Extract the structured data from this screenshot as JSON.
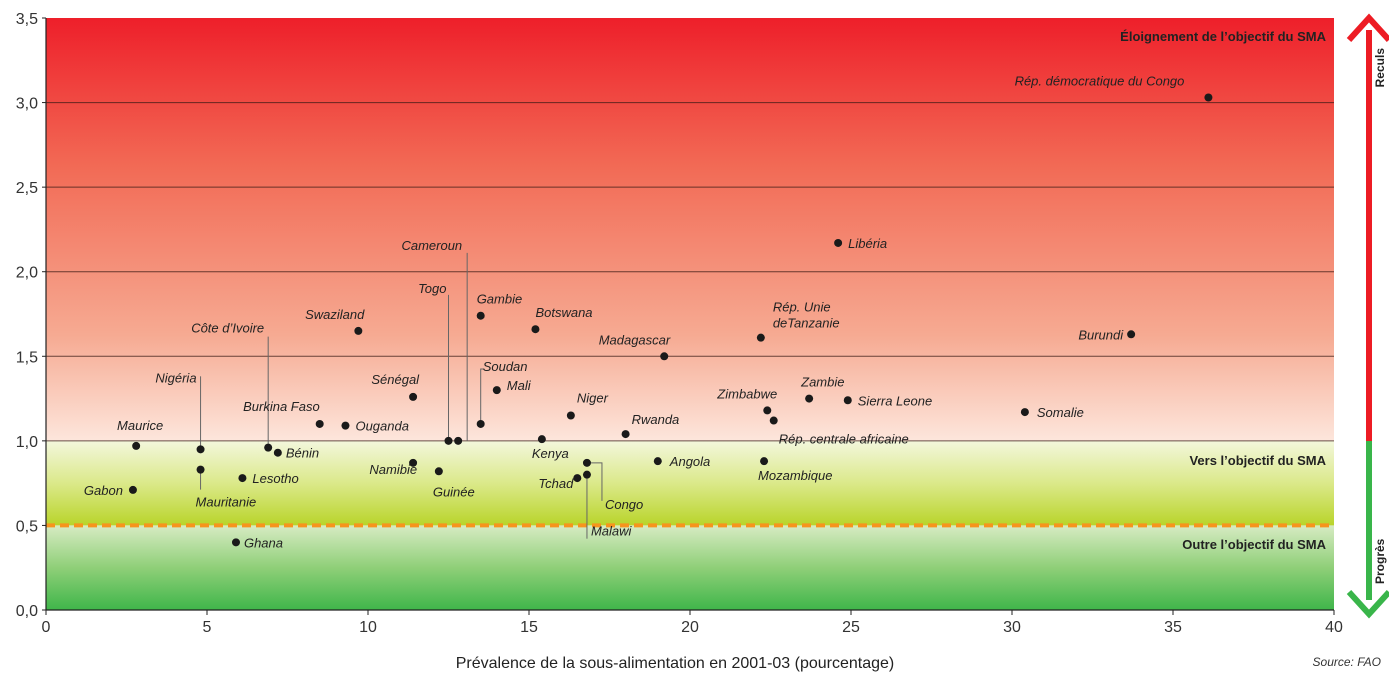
{
  "chart_data": {
    "type": "scatter",
    "xlabel": "Prévalence de la sous-alimentation en 2001-03 (pourcentage)",
    "ylabel": "",
    "xlim": [
      0,
      40
    ],
    "ylim": [
      0,
      3.5
    ],
    "x_ticks": [
      "0",
      "5",
      "10",
      "15",
      "20",
      "25",
      "30",
      "35",
      "40"
    ],
    "y_ticks": [
      "0,0",
      "0,5",
      "1,0",
      "1,5",
      "2,0",
      "2,5",
      "3,0",
      "3,5"
    ],
    "reference_line": 0.5,
    "zones": {
      "top": "Éloignement de l’objectif du SMA",
      "middle": "Vers l’objectif du SMA",
      "bottom": "Outre l’objectif du SMA"
    },
    "arrow_labels": {
      "up": "Reculs",
      "down": "Progrès"
    },
    "source": "Source: FAO",
    "colors": {
      "red": "#ed1c24",
      "green": "#39b54a",
      "orange": "#f7941d",
      "dot": "#1a1a1a"
    },
    "points": [
      {
        "name": "Rép. démocratique du Congo",
        "x": 36.1,
        "y": 3.03
      },
      {
        "name": "Libéria",
        "x": 24.6,
        "y": 2.17
      },
      {
        "name": "Burundi",
        "x": 33.7,
        "y": 1.63
      },
      {
        "name": "Rép. Unie deTanzanie",
        "x": 22.2,
        "y": 1.61
      },
      {
        "name": "Madagascar",
        "x": 19.2,
        "y": 1.5
      },
      {
        "name": "Gambie",
        "x": 13.5,
        "y": 1.74
      },
      {
        "name": "Botswana",
        "x": 15.2,
        "y": 1.66
      },
      {
        "name": "Swaziland",
        "x": 9.7,
        "y": 1.65
      },
      {
        "name": "Cameroun",
        "x": 12.8,
        "y": 1.0
      },
      {
        "name": "Togo",
        "x": 12.5,
        "y": 1.0
      },
      {
        "name": "Soudan",
        "x": 13.5,
        "y": 1.1
      },
      {
        "name": "Mali",
        "x": 14.0,
        "y": 1.3
      },
      {
        "name": "Sénégal",
        "x": 11.4,
        "y": 1.26
      },
      {
        "name": "Burkina Faso",
        "x": 8.5,
        "y": 1.1
      },
      {
        "name": "Ouganda",
        "x": 9.3,
        "y": 1.09
      },
      {
        "name": "Côte d’Ivoire",
        "x": 6.9,
        "y": 0.96
      },
      {
        "name": "Bénin",
        "x": 7.2,
        "y": 0.93
      },
      {
        "name": "Nigéria",
        "x": 4.8,
        "y": 0.95
      },
      {
        "name": "Maurice",
        "x": 2.8,
        "y": 0.97
      },
      {
        "name": "Mauritanie",
        "x": 4.8,
        "y": 0.83
      },
      {
        "name": "Lesotho",
        "x": 6.1,
        "y": 0.78
      },
      {
        "name": "Gabon",
        "x": 2.7,
        "y": 0.71
      },
      {
        "name": "Ghana",
        "x": 5.9,
        "y": 0.4
      },
      {
        "name": "Namibie",
        "x": 11.4,
        "y": 0.87
      },
      {
        "name": "Guinée",
        "x": 12.2,
        "y": 0.82
      },
      {
        "name": "Niger",
        "x": 16.3,
        "y": 1.15
      },
      {
        "name": "Kenya",
        "x": 15.4,
        "y": 1.01
      },
      {
        "name": "Rwanda",
        "x": 18.0,
        "y": 1.04
      },
      {
        "name": "Tchad",
        "x": 16.5,
        "y": 0.78
      },
      {
        "name": "Congo",
        "x": 16.8,
        "y": 0.87
      },
      {
        "name": "Malawi",
        "x": 16.8,
        "y": 0.8
      },
      {
        "name": "Angola",
        "x": 19.0,
        "y": 0.88
      },
      {
        "name": "Zimbabwe",
        "x": 22.4,
        "y": 1.18
      },
      {
        "name": "Rép. centrale africaine",
        "x": 22.6,
        "y": 1.12
      },
      {
        "name": "Zambie",
        "x": 23.7,
        "y": 1.25
      },
      {
        "name": "Sierra Leone",
        "x": 24.9,
        "y": 1.24
      },
      {
        "name": "Mozambique",
        "x": 22.3,
        "y": 0.88
      },
      {
        "name": "Somalie",
        "x": 30.4,
        "y": 1.17
      }
    ]
  }
}
